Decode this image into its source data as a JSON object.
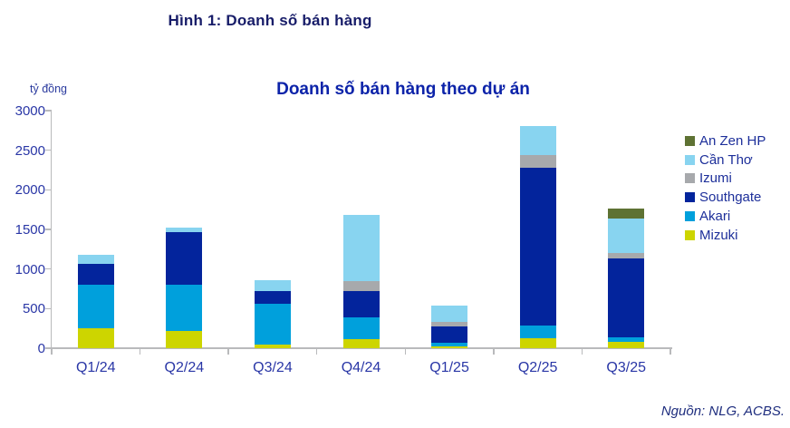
{
  "figure": {
    "title": "Hình 1: Doanh số bán hàng",
    "source": "Nguồn: NLG, ACBS."
  },
  "chart": {
    "title": "Doanh số bán hàng theo dự án",
    "unit": "tỷ đồng"
  },
  "chart_data": {
    "type": "bar",
    "stacked": true,
    "title": "Doanh số bán hàng theo dự án",
    "unit_label": "tỷ đồng",
    "categories": [
      "Q1/24",
      "Q2/24",
      "Q3/24",
      "Q4/24",
      "Q1/25",
      "Q2/25",
      "Q3/25"
    ],
    "series": [
      {
        "name": "Mizuki",
        "color": "#cdd500",
        "values": [
          250,
          215,
          50,
          120,
          25,
          125,
          85
        ]
      },
      {
        "name": "Akari",
        "color": "#00a0dc",
        "values": [
          550,
          585,
          515,
          270,
          40,
          160,
          55
        ]
      },
      {
        "name": "Southgate",
        "color": "#03249c",
        "values": [
          270,
          670,
          155,
          335,
          210,
          1990,
          995
        ]
      },
      {
        "name": "Izumi",
        "color": "#a7a9ac",
        "values": [
          0,
          0,
          0,
          125,
          55,
          160,
          70
        ]
      },
      {
        "name": "Cần Thơ",
        "color": "#88d4f0",
        "values": [
          105,
          55,
          135,
          830,
          210,
          365,
          430
        ]
      },
      {
        "name": "An Zen HP",
        "color": "#5e7233",
        "values": [
          0,
          0,
          0,
          0,
          0,
          0,
          125
        ]
      }
    ],
    "totals": [
      1175,
      1525,
      855,
      1680,
      540,
      2800,
      1760
    ],
    "ylim": [
      0,
      3000
    ],
    "y_ticks": [
      0,
      500,
      1000,
      1500,
      2000,
      2500,
      3000
    ],
    "legend_position": "right",
    "legend_order_top_to_bottom": [
      "An Zen HP",
      "Cần Thơ",
      "Izumi",
      "Southgate",
      "Akari",
      "Mizuki"
    ],
    "grid": false
  }
}
